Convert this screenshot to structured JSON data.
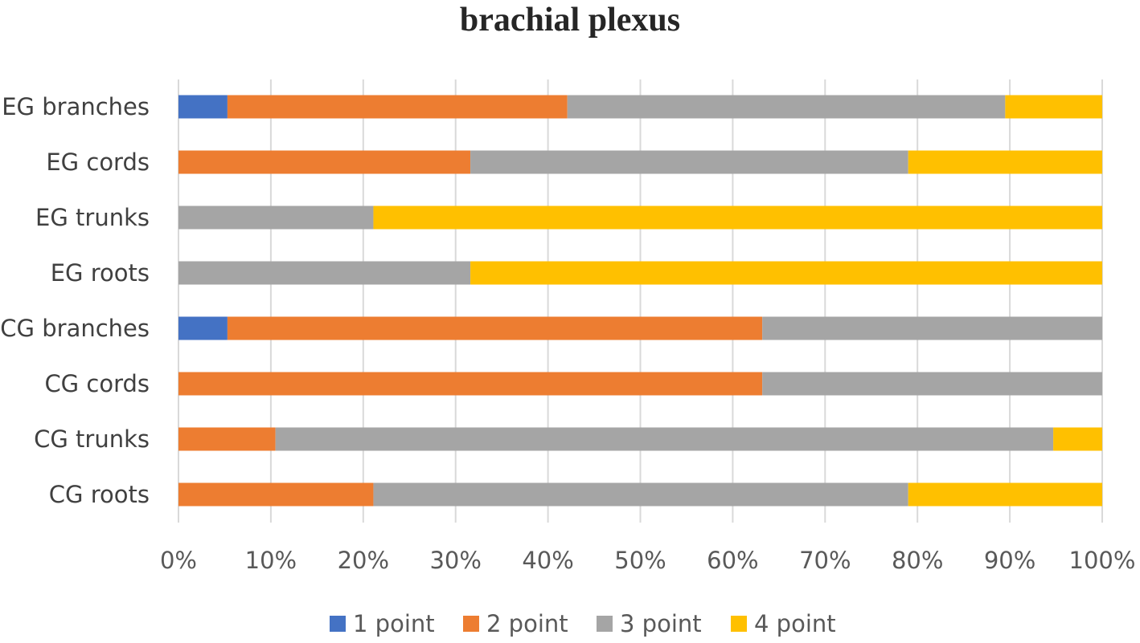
{
  "chart_data": {
    "type": "bar",
    "orientation": "horizontal",
    "stacked": "percent",
    "title": "brachial plexus",
    "categories": [
      "CG roots",
      "CG trunks",
      "CG cords",
      "CG branches",
      "EG roots",
      "EG trunks",
      "EG cords",
      "EG branches"
    ],
    "series": [
      {
        "name": "1 point",
        "color": "#4472C4",
        "values": [
          0,
          0,
          0,
          5.3,
          0,
          0,
          0,
          5.3
        ]
      },
      {
        "name": "2 point",
        "color": "#ED7D31",
        "values": [
          21.1,
          10.5,
          63.2,
          57.9,
          0,
          0,
          31.6,
          36.8
        ]
      },
      {
        "name": "3 point",
        "color": "#A5A5A5",
        "values": [
          57.9,
          84.2,
          36.8,
          36.8,
          31.6,
          21.1,
          47.4,
          47.4
        ]
      },
      {
        "name": "4 point",
        "color": "#FFC000",
        "values": [
          21.0,
          5.3,
          0,
          0,
          68.4,
          78.9,
          21.0,
          10.5
        ]
      }
    ],
    "x_ticks": [
      "0%",
      "10%",
      "20%",
      "30%",
      "40%",
      "50%",
      "60%",
      "70%",
      "80%",
      "90%",
      "100%"
    ],
    "xlim": [
      0,
      100
    ],
    "grid": "vertical",
    "legend": "bottom",
    "xlabel": "",
    "ylabel": ""
  }
}
